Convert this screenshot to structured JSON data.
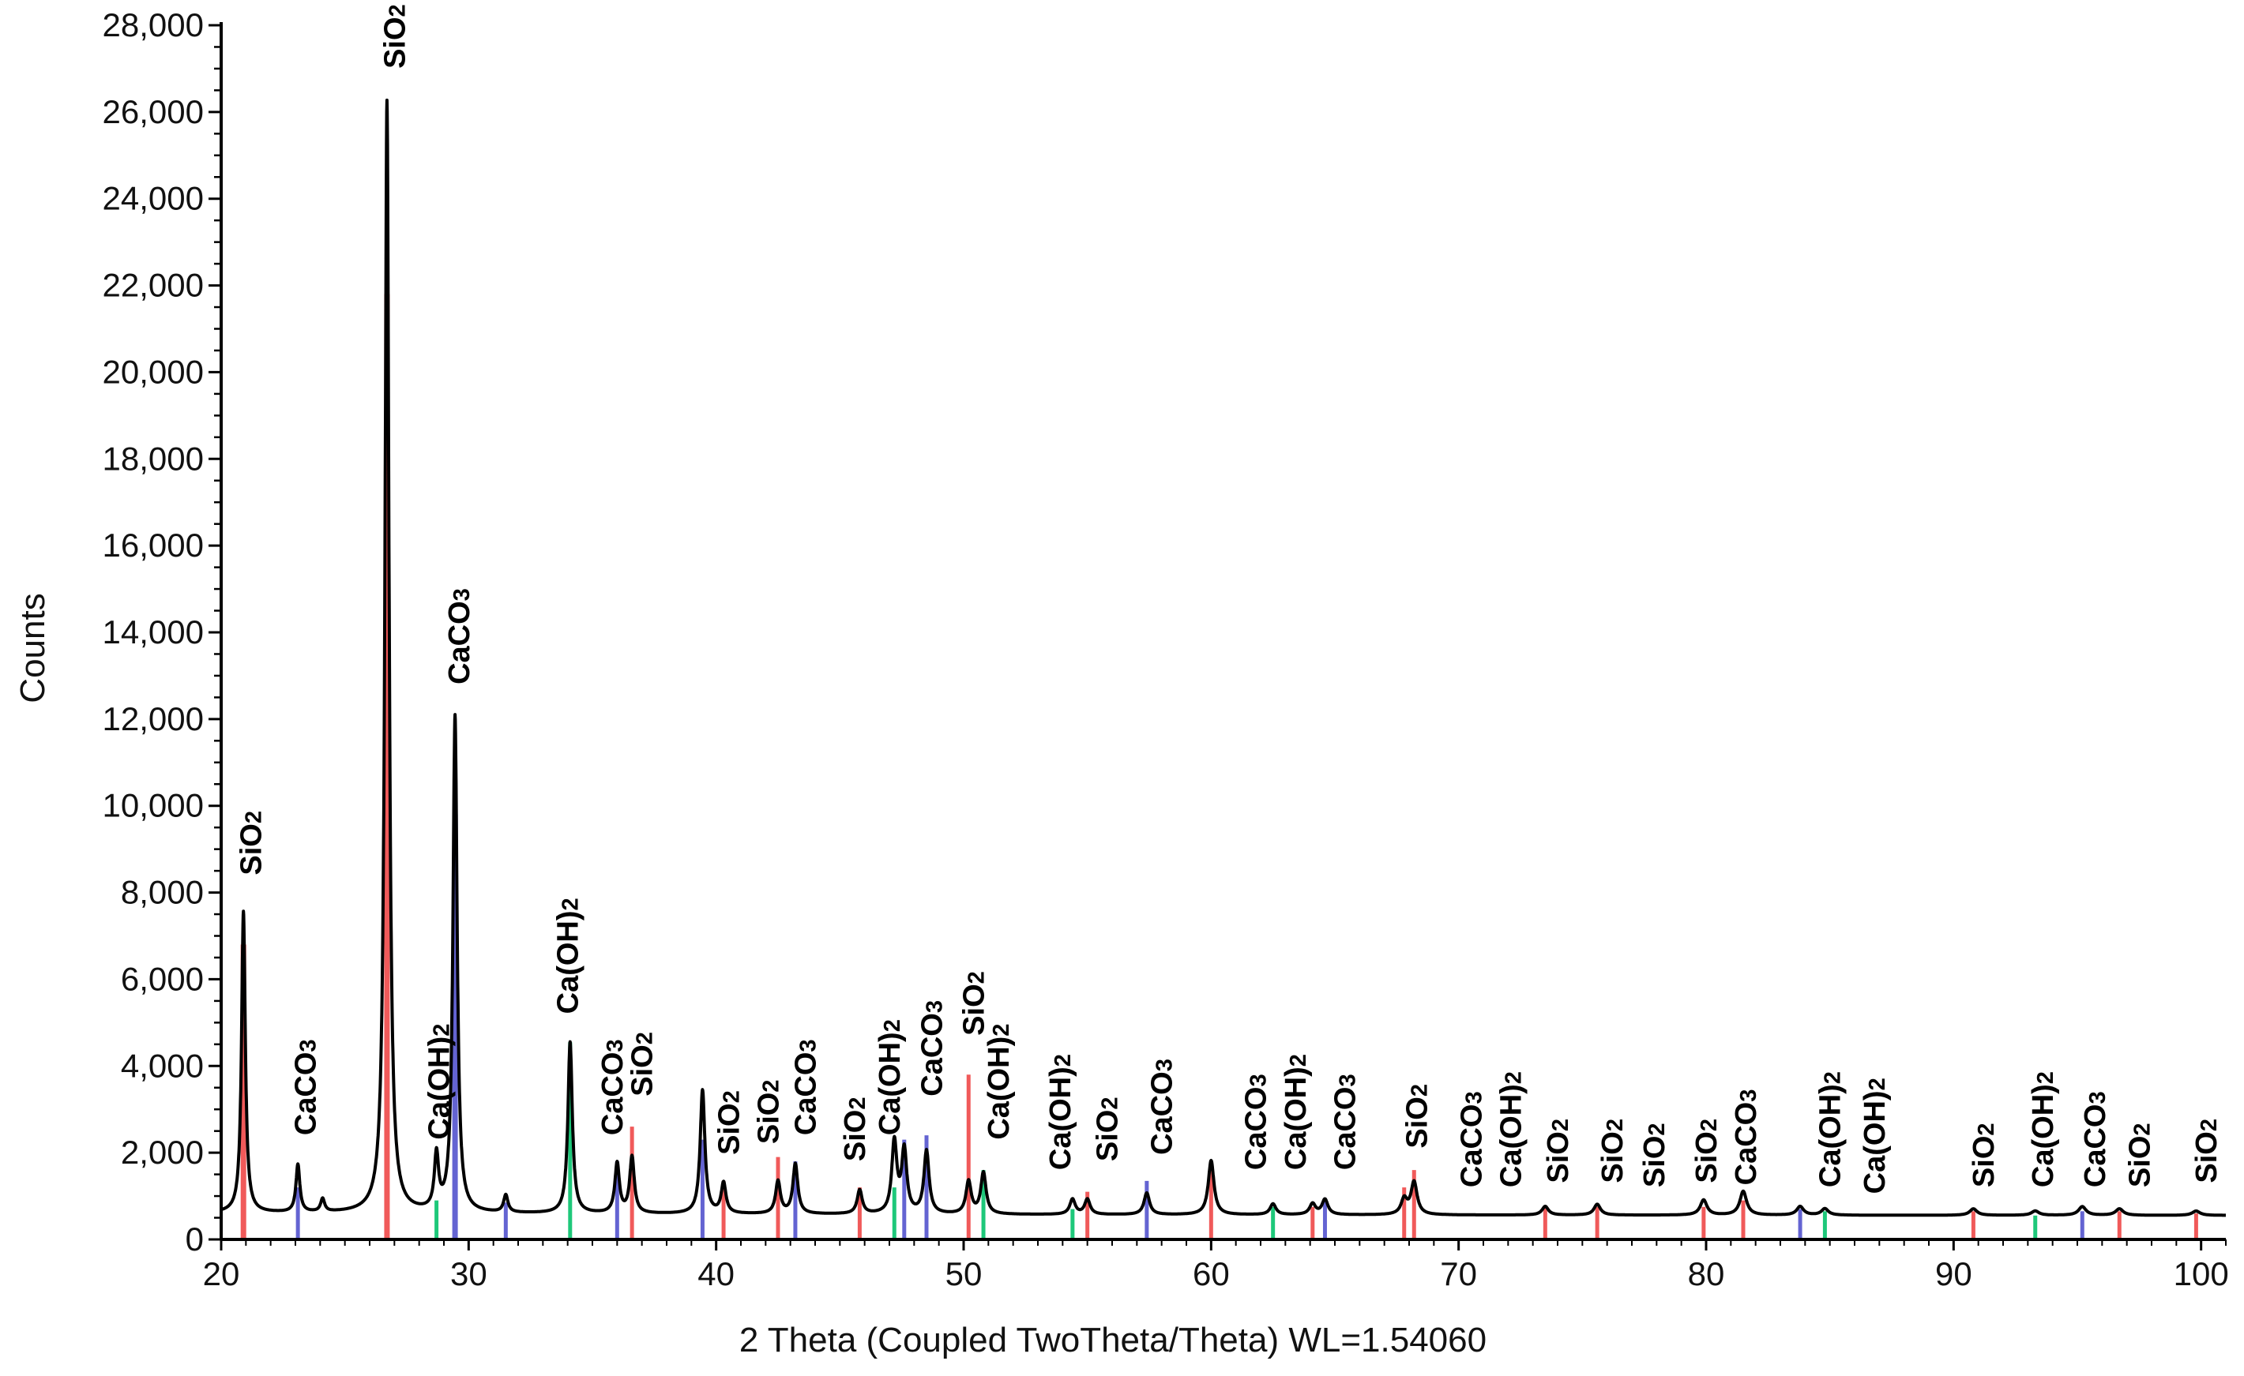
{
  "chart_data": {
    "type": "line",
    "title": "",
    "xlabel": "2 Theta (Coupled TwoTheta/Theta) WL=1.54060",
    "ylabel": "Counts",
    "xlim": [
      20,
      101
    ],
    "ylim": [
      0,
      28000
    ],
    "grid": false,
    "x_ticks": [
      20,
      30,
      40,
      50,
      60,
      70,
      80,
      90,
      100
    ],
    "x_tick_labels": [
      "20",
      "30",
      "40",
      "50",
      "60",
      "70",
      "80",
      "90",
      "100"
    ],
    "y_ticks": [
      0,
      2000,
      4000,
      6000,
      8000,
      10000,
      12000,
      14000,
      16000,
      18000,
      20000,
      22000,
      24000,
      26000,
      28000
    ],
    "y_tick_labels": [
      "0",
      "2,000",
      "4,000",
      "6,000",
      "8,000",
      "10,000",
      "12,000",
      "14,000",
      "16,000",
      "18,000",
      "20,000",
      "22,000",
      "24,000",
      "26,000",
      "28,000"
    ],
    "phase_colors": {
      "SiO2": "#f05a5a",
      "CaCO3": "#6464d2",
      "Ca(OH)2": "#1ec87a"
    },
    "line_color": "#000000",
    "baseline_counts": 550,
    "measured_peaks": [
      {
        "x": 20.9,
        "y": 7500,
        "phase": "SiO2",
        "ref_y": 6800
      },
      {
        "x": 23.1,
        "y": 1650,
        "phase": "CaCO3",
        "ref_y": 1200
      },
      {
        "x": 24.1,
        "y": 850,
        "phase": "",
        "ref_y": 0
      },
      {
        "x": 26.7,
        "y": 26200,
        "phase": "SiO2",
        "ref_y": 21800
      },
      {
        "x": 28.7,
        "y": 1800,
        "phase": "Ca(OH)2",
        "ref_y": 900
      },
      {
        "x": 29.45,
        "y": 12000,
        "phase": "CaCO3",
        "ref_y": 9800
      },
      {
        "x": 31.5,
        "y": 950,
        "phase": "CaCO3",
        "ref_y": 850
      },
      {
        "x": 34.1,
        "y": 4500,
        "phase": "Ca(OH)2",
        "ref_y": 4550
      },
      {
        "x": 36.0,
        "y": 1700,
        "phase": "CaCO3",
        "ref_y": 1800
      },
      {
        "x": 36.6,
        "y": 1850,
        "phase": "SiO2",
        "ref_y": 2600
      },
      {
        "x": 39.45,
        "y": 3400,
        "phase": "CaCO3",
        "ref_y": 2300
      },
      {
        "x": 40.3,
        "y": 1250,
        "phase": "SiO2",
        "ref_y": 1350
      },
      {
        "x": 42.5,
        "y": 1300,
        "phase": "SiO2",
        "ref_y": 1900
      },
      {
        "x": 43.2,
        "y": 1700,
        "phase": "CaCO3",
        "ref_y": 1800
      },
      {
        "x": 45.8,
        "y": 1100,
        "phase": "SiO2",
        "ref_y": 1200
      },
      {
        "x": 47.2,
        "y": 2200,
        "phase": "Ca(OH)2",
        "ref_y": 1200
      },
      {
        "x": 47.6,
        "y": 2000,
        "phase": "CaCO3",
        "ref_y": 2300
      },
      {
        "x": 48.5,
        "y": 2000,
        "phase": "CaCO3",
        "ref_y": 2400
      },
      {
        "x": 50.2,
        "y": 1300,
        "phase": "SiO2",
        "ref_y": 3800
      },
      {
        "x": 50.8,
        "y": 1500,
        "phase": "Ca(OH)2",
        "ref_y": 1600
      },
      {
        "x": 54.4,
        "y": 900,
        "phase": "Ca(OH)2",
        "ref_y": 700
      },
      {
        "x": 55.0,
        "y": 900,
        "phase": "SiO2",
        "ref_y": 1100
      },
      {
        "x": 57.4,
        "y": 1050,
        "phase": "CaCO3",
        "ref_y": 1350
      },
      {
        "x": 60.0,
        "y": 1800,
        "phase": "SiO2",
        "ref_y": 1600
      },
      {
        "x": 62.5,
        "y": 800,
        "phase": "Ca(OH)2",
        "ref_y": 750
      },
      {
        "x": 64.1,
        "y": 800,
        "phase": "SiO2",
        "ref_y": 750
      },
      {
        "x": 64.6,
        "y": 900,
        "phase": "CaCO3",
        "ref_y": 950
      },
      {
        "x": 67.8,
        "y": 900,
        "phase": "SiO2",
        "ref_y": 1200
      },
      {
        "x": 68.2,
        "y": 1300,
        "phase": "SiO2",
        "ref_y": 1600
      },
      {
        "x": 73.5,
        "y": 750,
        "phase": "SiO2",
        "ref_y": 750
      },
      {
        "x": 75.6,
        "y": 800,
        "phase": "SiO2",
        "ref_y": 750
      },
      {
        "x": 79.9,
        "y": 900,
        "phase": "SiO2",
        "ref_y": 750
      },
      {
        "x": 81.5,
        "y": 1100,
        "phase": "SiO2",
        "ref_y": 900
      },
      {
        "x": 83.8,
        "y": 750,
        "phase": "CaCO3",
        "ref_y": 700
      },
      {
        "x": 84.8,
        "y": 700,
        "phase": "Ca(OH)2",
        "ref_y": 650
      },
      {
        "x": 90.8,
        "y": 700,
        "phase": "SiO2",
        "ref_y": 650
      },
      {
        "x": 93.3,
        "y": 650,
        "phase": "Ca(OH)2",
        "ref_y": 550
      },
      {
        "x": 95.2,
        "y": 750,
        "phase": "CaCO3",
        "ref_y": 650
      },
      {
        "x": 96.7,
        "y": 700,
        "phase": "SiO2",
        "ref_y": 650
      },
      {
        "x": 99.8,
        "y": 650,
        "phase": "SiO2",
        "ref_y": 600
      }
    ],
    "peak_labels": [
      {
        "base": "SiO",
        "sub": "2",
        "x": 21.2,
        "y": 8400
      },
      {
        "base": "CaCO",
        "sub": "3",
        "x": 23.4,
        "y": 2400
      },
      {
        "base": "SiO",
        "sub": "2",
        "x": 27.0,
        "y": 27000
      },
      {
        "base": "Ca(OH)",
        "sub": "2",
        "x": 28.8,
        "y": 2300
      },
      {
        "base": "CaCO",
        "sub": "3",
        "x": 29.6,
        "y": 12800
      },
      {
        "base": "Ca(OH)",
        "sub": "2",
        "x": 34.0,
        "y": 5200
      },
      {
        "base": "CaCO",
        "sub": "3",
        "x": 35.8,
        "y": 2400
      },
      {
        "base": "SiO",
        "sub": "2",
        "x": 37.0,
        "y": 3300
      },
      {
        "base": "SiO",
        "sub": "2",
        "x": 40.5,
        "y": 1950
      },
      {
        "base": "SiO",
        "sub": "2",
        "x": 42.1,
        "y": 2200
      },
      {
        "base": "CaCO",
        "sub": "3",
        "x": 43.6,
        "y": 2400
      },
      {
        "base": "SiO",
        "sub": "2",
        "x": 45.6,
        "y": 1800
      },
      {
        "base": "Ca(OH)",
        "sub": "2",
        "x": 47.0,
        "y": 2400
      },
      {
        "base": "CaCO",
        "sub": "3",
        "x": 48.7,
        "y": 3300
      },
      {
        "base": "SiO",
        "sub": "2",
        "x": 50.4,
        "y": 4700
      },
      {
        "base": "Ca(OH)",
        "sub": "2",
        "x": 51.4,
        "y": 2300
      },
      {
        "base": "Ca(OH)",
        "sub": "2",
        "x": 53.9,
        "y": 1600
      },
      {
        "base": "SiO",
        "sub": "2",
        "x": 55.8,
        "y": 1800
      },
      {
        "base": "CaCO",
        "sub": "3",
        "x": 58.0,
        "y": 1950
      },
      {
        "base": "CaCO",
        "sub": "3",
        "x": 61.8,
        "y": 1600
      },
      {
        "base": "Ca(OH)",
        "sub": "2",
        "x": 63.4,
        "y": 1600
      },
      {
        "base": "CaCO",
        "sub": "3",
        "x": 65.4,
        "y": 1600
      },
      {
        "base": "SiO",
        "sub": "2",
        "x": 68.3,
        "y": 2100
      },
      {
        "base": "CaCO",
        "sub": "3",
        "x": 70.5,
        "y": 1200
      },
      {
        "base": "Ca(OH)",
        "sub": "2",
        "x": 72.1,
        "y": 1200
      },
      {
        "base": "SiO",
        "sub": "2",
        "x": 74.0,
        "y": 1300
      },
      {
        "base": "SiO",
        "sub": "2",
        "x": 76.2,
        "y": 1300
      },
      {
        "base": "SiO",
        "sub": "2",
        "x": 77.9,
        "y": 1200
      },
      {
        "base": "SiO",
        "sub": "2",
        "x": 80.0,
        "y": 1300
      },
      {
        "base": "CaCO",
        "sub": "3",
        "x": 81.6,
        "y": 1250
      },
      {
        "base": "Ca(OH)",
        "sub": "2",
        "x": 85.0,
        "y": 1200
      },
      {
        "base": "Ca(OH)",
        "sub": "2",
        "x": 86.8,
        "y": 1050
      },
      {
        "base": "SiO",
        "sub": "2",
        "x": 91.2,
        "y": 1200
      },
      {
        "base": "Ca(OH)",
        "sub": "2",
        "x": 93.6,
        "y": 1200
      },
      {
        "base": "CaCO",
        "sub": "3",
        "x": 95.7,
        "y": 1200
      },
      {
        "base": "SiO",
        "sub": "2",
        "x": 97.5,
        "y": 1200
      },
      {
        "base": "SiO",
        "sub": "2",
        "x": 100.2,
        "y": 1300
      }
    ]
  }
}
